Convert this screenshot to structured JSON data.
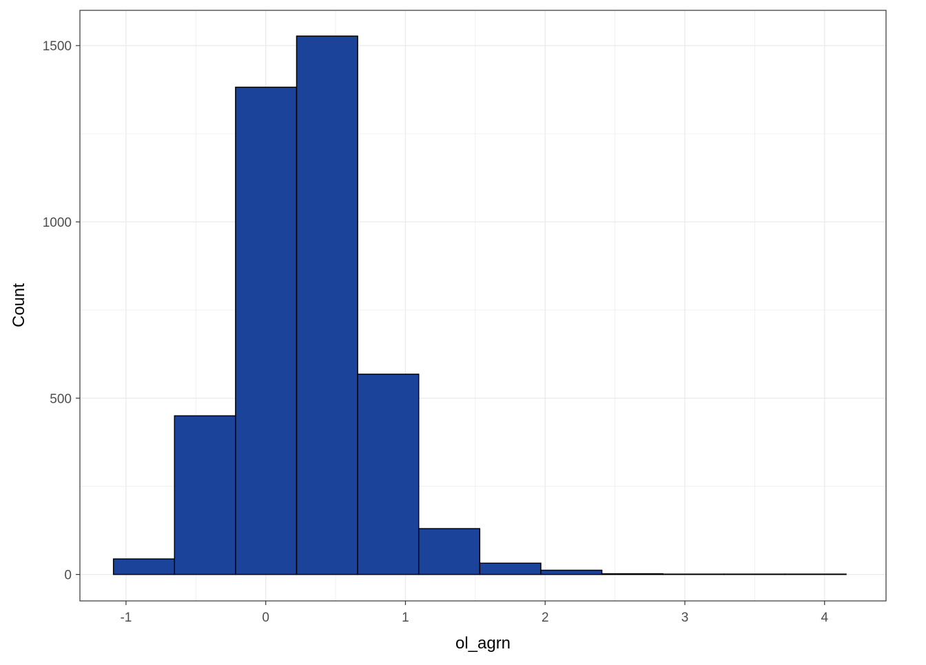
{
  "chart_data": {
    "type": "bar",
    "subtype": "histogram",
    "title": "",
    "xlabel": "ol_agrn",
    "ylabel": "Count",
    "xlim": [
      -1.33,
      4.44
    ],
    "ylim": [
      -75,
      1600
    ],
    "x_ticks": [
      -1,
      0,
      1,
      2,
      3,
      4
    ],
    "x_tick_labels": [
      "-1",
      "0",
      "1",
      "2",
      "3",
      "4"
    ],
    "y_ticks": [
      0,
      500,
      1000,
      1500
    ],
    "y_tick_labels": [
      "0",
      "500",
      "1000",
      "1500"
    ],
    "grid": true,
    "legend": "none",
    "bin_edges": [
      -1.09,
      -0.653,
      -0.216,
      0.221,
      0.658,
      1.095,
      1.532,
      1.969,
      2.406,
      2.843,
      3.28,
      3.717,
      4.154
    ],
    "values": [
      44,
      450,
      1382,
      1527,
      568,
      130,
      32,
      12,
      2,
      1,
      1,
      1
    ],
    "colors": {
      "bar_fill": "#1a4399",
      "bar_stroke": "#000000",
      "grid": "#ebebeb",
      "panel_border": "#333333",
      "background": "#ffffff"
    }
  }
}
